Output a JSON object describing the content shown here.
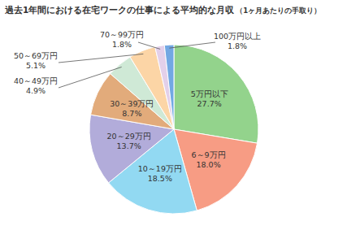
{
  "chart_data": {
    "type": "pie",
    "title": "過去1年間における在宅ワークの仕事による平均的な月収",
    "subtitle": "（1ヶ月あたりの手取り）",
    "categories": [
      "5万円以下",
      "6～9万円",
      "10～19万円",
      "20～29万円",
      "30～39万円",
      "40～49万円",
      "50～69万円",
      "70～99万円",
      "100万円以上"
    ],
    "values": [
      27.7,
      18.0,
      18.5,
      13.7,
      8.7,
      4.9,
      5.1,
      1.8,
      1.8
    ],
    "value_labels": [
      "27.7%",
      "18.0%",
      "18.5%",
      "13.7%",
      "8.7%",
      "4.9%",
      "5.1%",
      "1.8%",
      "1.8%"
    ],
    "colors": [
      "#93d38c",
      "#f79c84",
      "#92d9f2",
      "#b2acda",
      "#e2ab7b",
      "#cfe9d6",
      "#fcd5a6",
      "#e3d0ea",
      "#72a8e3"
    ],
    "data_labels": true
  }
}
